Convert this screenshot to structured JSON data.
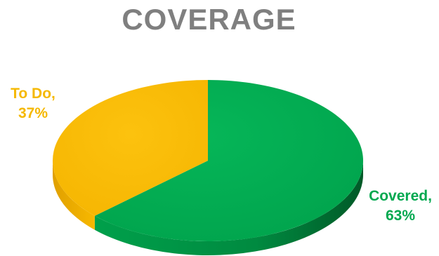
{
  "chart_data": {
    "type": "pie",
    "title": "COVERAGE",
    "style": "3d",
    "legend": "none",
    "slices": [
      {
        "label": "Covered",
        "value": 63,
        "value_label": "63%",
        "color": "#00a84f"
      },
      {
        "label": "To Do",
        "value": 37,
        "value_label": "37%",
        "color": "#fbbc05"
      }
    ]
  }
}
